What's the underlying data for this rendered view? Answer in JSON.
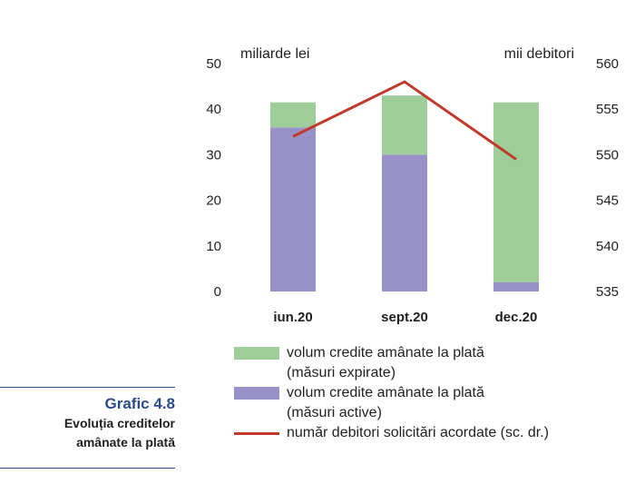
{
  "chart_data": {
    "type": "bar",
    "stacked": true,
    "categories": [
      "iun.20",
      "sept.20",
      "dec.20"
    ],
    "left_axis_unit": "miliarde lei",
    "right_axis_unit": "mii debitori",
    "ylim": [
      0,
      50
    ],
    "y2lim": [
      535,
      560
    ],
    "yticks": [
      0,
      10,
      20,
      30,
      40,
      50
    ],
    "y2ticks": [
      535,
      540,
      545,
      550,
      555,
      560
    ],
    "grid": false,
    "series": [
      {
        "name": "volum credite amânate la plată (măsuri active)",
        "kind": "bar",
        "color": "#9892c9",
        "values": [
          36,
          30,
          2
        ]
      },
      {
        "name": "volum credite amânate la plată (măsuri expirate)",
        "kind": "bar",
        "color": "#9fcd99",
        "values": [
          5.5,
          13,
          39.5
        ]
      },
      {
        "name": "număr debitori solicitări acordate (sc. dr.)",
        "kind": "line",
        "axis": "right",
        "color": "#c0392b",
        "values": [
          552,
          558,
          549.5
        ]
      }
    ]
  },
  "legend": [
    {
      "label": "volum credite amânate la plată\n(măsuri expirate)",
      "color": "#9fcd99",
      "kind": "box"
    },
    {
      "label": "volum credite amânate la plată\n(măsuri active)",
      "color": "#9892c9",
      "kind": "box"
    },
    {
      "label": "număr debitori solicitări acordate (sc. dr.)",
      "color": "#c0392b",
      "kind": "line"
    }
  ],
  "caption": {
    "title": "Grafic 4.8",
    "subtitle_line1": "Evoluția creditelor",
    "subtitle_line2": "amânate la plată"
  },
  "colors": {
    "caption_accent": "#2b4a8a"
  }
}
